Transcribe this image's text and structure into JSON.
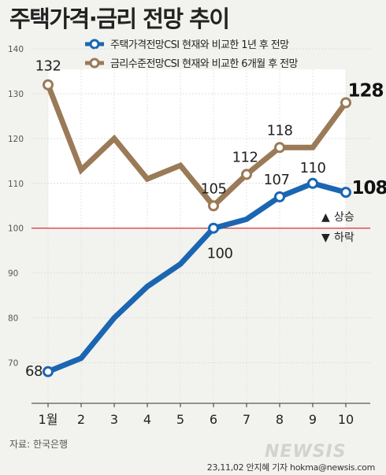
{
  "title": "주택가격·금리 전망 추이",
  "legend": {
    "items": [
      {
        "label": "주택가격전망CSI 현재와 비교한 1년 후 전망",
        "color": "#1b66b2"
      },
      {
        "label": "금리수준전망CSI 현재와 비교한 6개월 후 전망",
        "color": "#9a7a57"
      }
    ]
  },
  "annotations": {
    "up_label": "상승",
    "down_label": "하락",
    "up_symbol": "▲",
    "down_symbol": "▼",
    "up_color": "#d0202a",
    "down_color": "#d0202a"
  },
  "source": "자료: 한국은행",
  "credit": "23,11,02 안지혜 기자 hokma@newsis.com",
  "watermark": "NEWSIS",
  "colors": {
    "housing": "#1b66b2",
    "rate": "#9a7a57",
    "refline": "#d0202a",
    "background": "#f2f2ef"
  },
  "chart_data": {
    "type": "line",
    "x": [
      "1월",
      "2",
      "3",
      "4",
      "5",
      "6",
      "7",
      "8",
      "9",
      "10"
    ],
    "y_ticks": [
      "140",
      "130",
      "120",
      "110",
      "100",
      "90",
      "80",
      "70"
    ],
    "ylim": [
      65,
      143
    ],
    "reference_line": 100,
    "series": [
      {
        "name": "주택가격전망CSI 현재와 비교한 1년 후 전망",
        "values": [
          68,
          71,
          80,
          87,
          92,
          100,
          102,
          107,
          110,
          108
        ],
        "data_labels": [
          {
            "index": 0,
            "text": "68",
            "big": false
          },
          {
            "index": 5,
            "text": "100",
            "big": false
          },
          {
            "index": 7,
            "text": "107",
            "big": false
          },
          {
            "index": 8,
            "text": "110",
            "big": false
          },
          {
            "index": 9,
            "text": "108",
            "big": true
          }
        ]
      },
      {
        "name": "금리수준전망CSI 현재와 비교한 6개월 후 전망",
        "values": [
          132,
          113,
          120,
          111,
          114,
          105,
          112,
          118,
          118,
          128
        ],
        "data_labels": [
          {
            "index": 0,
            "text": "132",
            "big": false
          },
          {
            "index": 5,
            "text": "105",
            "big": false
          },
          {
            "index": 6,
            "text": "112",
            "big": false
          },
          {
            "index": 7,
            "text": "118",
            "big": false
          },
          {
            "index": 9,
            "text": "128",
            "big": true
          }
        ]
      }
    ]
  }
}
